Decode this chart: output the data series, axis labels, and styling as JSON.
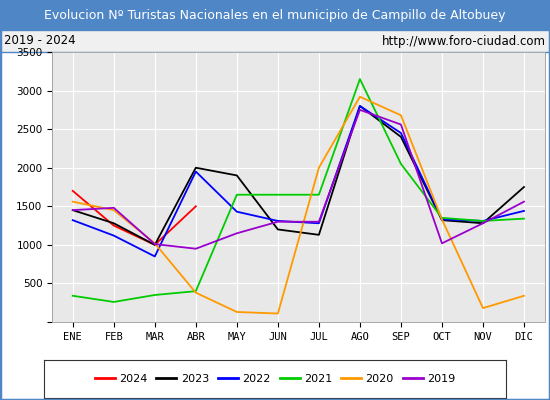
{
  "title": "Evolucion Nº Turistas Nacionales en el municipio de Campillo de Altobuey",
  "subtitle_left": "2019 - 2024",
  "subtitle_right": "http://www.foro-ciudad.com",
  "months": [
    "ENE",
    "FEB",
    "MAR",
    "ABR",
    "MAY",
    "JUN",
    "JUL",
    "AGO",
    "SEP",
    "OCT",
    "NOV",
    "DIC"
  ],
  "series": {
    "2024": {
      "color": "#ff0000",
      "data": [
        1700,
        1250,
        1000,
        1500,
        null,
        null,
        null,
        null,
        null,
        null,
        null,
        null
      ]
    },
    "2023": {
      "color": "#000000",
      "data": [
        1450,
        1280,
        1000,
        2000,
        1900,
        1200,
        1130,
        2800,
        2400,
        1320,
        1280,
        1750
      ]
    },
    "2022": {
      "color": "#0000ff",
      "data": [
        1320,
        1120,
        850,
        1950,
        1430,
        1310,
        1280,
        2800,
        2450,
        1330,
        1310,
        1440
      ]
    },
    "2021": {
      "color": "#00cc00",
      "data": [
        340,
        260,
        350,
        400,
        1650,
        1650,
        1650,
        3150,
        2050,
        1350,
        1310,
        1340
      ]
    },
    "2020": {
      "color": "#ff9900",
      "data": [
        1560,
        1450,
        1020,
        380,
        130,
        110,
        2000,
        2920,
        2680,
        1330,
        180,
        340
      ]
    },
    "2019": {
      "color": "#9900cc",
      "data": [
        1450,
        1480,
        1010,
        950,
        1150,
        1300,
        1300,
        2750,
        2560,
        1020,
        1280,
        1560
      ]
    }
  },
  "ylim": [
    0,
    3500
  ],
  "yticks": [
    0,
    500,
    1000,
    1500,
    2000,
    2500,
    3000,
    3500
  ],
  "title_bg_color": "#4f86c6",
  "title_text_color": "#ffffff",
  "plot_bg_color": "#e8e8e8",
  "grid_color": "#ffffff",
  "border_color": "#4f86c6",
  "legend_order": [
    "2024",
    "2023",
    "2022",
    "2021",
    "2020",
    "2019"
  ]
}
